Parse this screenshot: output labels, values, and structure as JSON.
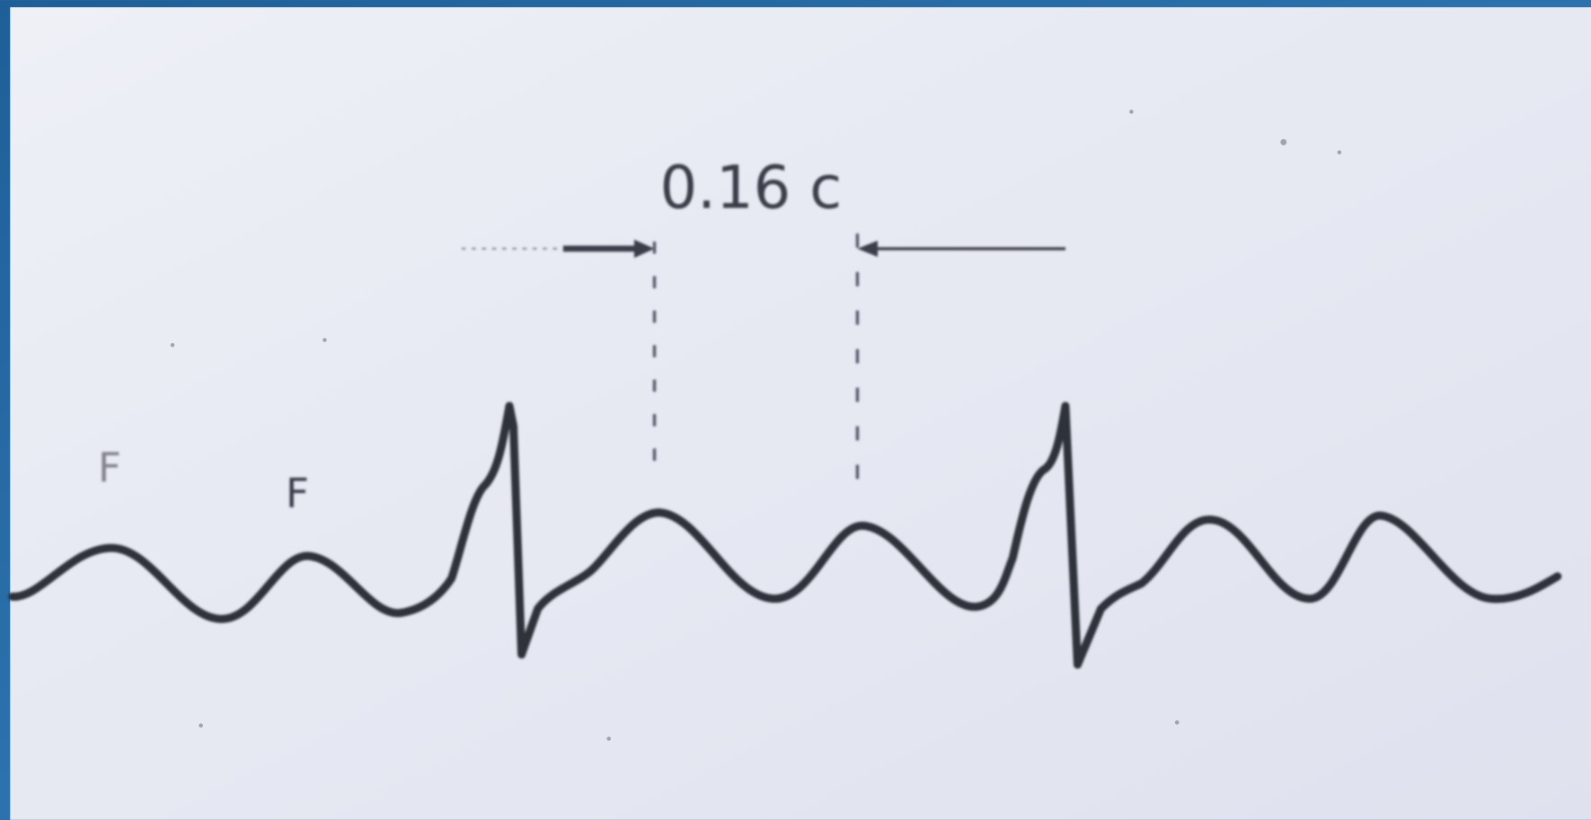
{
  "annotations": {
    "interval": "0.16 c",
    "labels": [
      "F",
      "F"
    ]
  }
}
